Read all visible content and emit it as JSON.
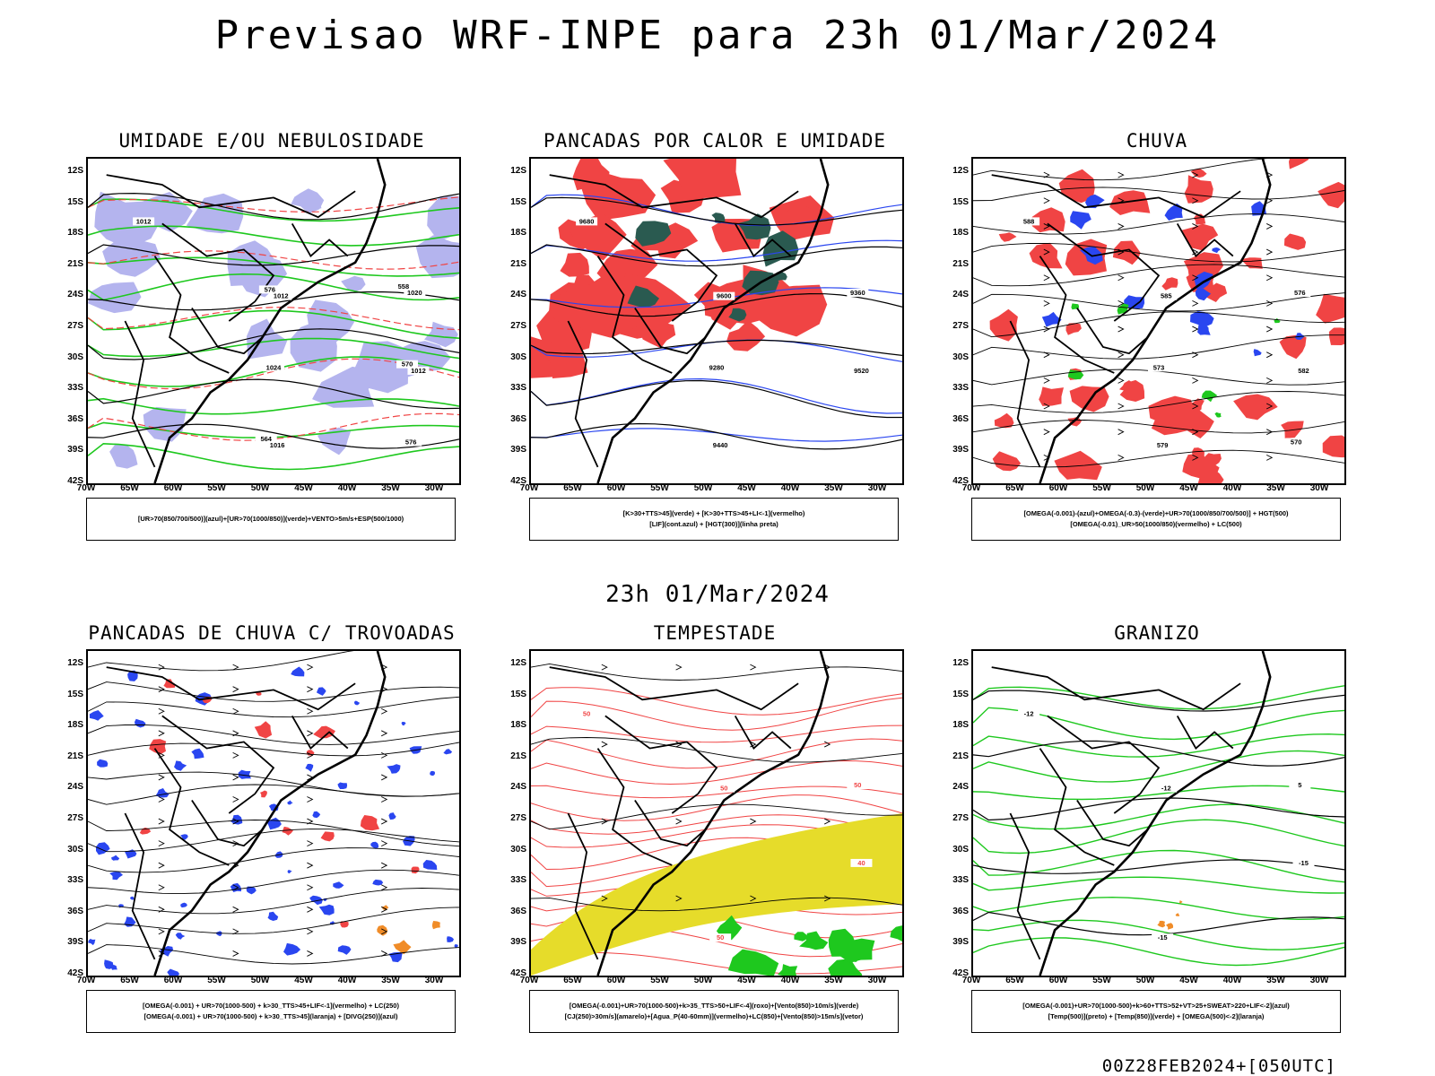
{
  "header": {
    "title": "Previsao WRF-INPE  para 23h 01/Mar/2024"
  },
  "middle": {
    "title": "23h 01/Mar/2024"
  },
  "footer": {
    "stamp": "00Z28FEB2024+[050UTC]"
  },
  "axes": {
    "lat_labels": [
      "12S",
      "15S",
      "18S",
      "21S",
      "24S",
      "27S",
      "30S",
      "33S",
      "36S",
      "39S",
      "42S"
    ],
    "lon_labels": [
      "70W",
      "65W",
      "60W",
      "55W",
      "50W",
      "45W",
      "40W",
      "35W",
      "30W"
    ]
  },
  "colors": {
    "red": "#f04444",
    "green": "#1ec81e",
    "blue": "#2a46f0",
    "lavender": "#b4b4ee",
    "darkteal": "#2a5a50",
    "yellow": "#e6dc2a",
    "orange": "#f08c28"
  },
  "panels": [
    {
      "title": "UMIDADE E/OU NEBULOSIDADE",
      "legend": [
        "[UR>70(850/700/500)](azul)+[UR>70(1000/850)](verde)+VENTO>5m/s+ESP(500/1000)"
      ],
      "contour_labels": [
        "1012",
        "1012",
        "1012",
        "1016",
        "1020",
        "1024",
        "576",
        "576",
        "570",
        "564",
        "558"
      ]
    },
    {
      "title": "PANCADAS POR CALOR E UMIDADE",
      "legend": [
        "[K>30+TTS>45](verde) + [K>30+TTS>45+LI<-1](vermelho)",
        "[LIF](cont.azul) + [HGT(300)](linha preta)"
      ],
      "contour_labels": [
        "9680",
        "9600",
        "9520",
        "9440",
        "9360",
        "9280"
      ]
    },
    {
      "title": "CHUVA",
      "legend": [
        "[OMEGA(-0.001)-(azul)+OMEGA(-0.3)-(verde)+UR>70(1000/850/700/500)] + HGT(500)",
        "[OMEGA(-0.01)_UR>50(1000/850)(vermelho) + LC(500)"
      ],
      "contour_labels": [
        "588",
        "585",
        "582",
        "579",
        "576",
        "573",
        "570"
      ]
    },
    {
      "title": "PANCADAS DE CHUVA C/ TROVOADAS",
      "legend": [
        "[OMEGA(-0.001) + UR>70(1000-500) + k>30_TTS>45+LIF<-1](vermelho) + LC(250)",
        "[OMEGA(-0.001) + UR>70(1000-500) + k>30_TTS>45](laranja) + [DIVG(250)](azul)"
      ],
      "contour_labels": []
    },
    {
      "title": "TEMPESTADE",
      "legend": [
        "[OMEGA(-0.001)+UR>70(1000-500)+k>35_TTS>50+LIF<-4](roxo)+[Vento(850)>10m/s](verde)",
        "[CJ(250)>30m/s](amarelo)+[Agua_P(40-60mm)](vermelho)+LC(850)+[Vento(850)>15m/s](vetor)"
      ],
      "contour_labels": [
        "50",
        "50",
        "40",
        "50",
        "50"
      ]
    },
    {
      "title": "GRANIZO",
      "legend": [
        "[OMEGA(-0.001)+UR>70(1000-500)+k>60+TTS>52+VT>25+SWEAT>220+LIF<-2](azul)",
        "[Temp(500)](preto) + [Temp(850)](verde) + [OMEGA(500)<-2](laranja)"
      ],
      "contour_labels": [
        "-12",
        "-12",
        "-15",
        "-15",
        "5"
      ]
    }
  ]
}
